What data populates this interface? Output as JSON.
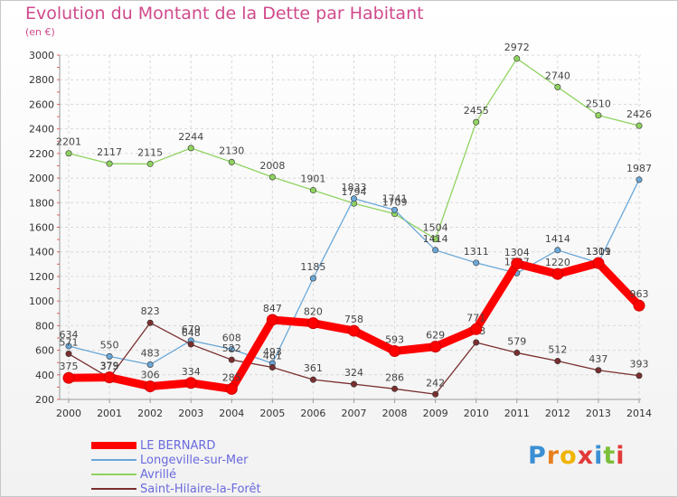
{
  "title": "Evolution du Montant de la Dette par Habitant",
  "unit": "(en €)",
  "logo": [
    "P",
    "r",
    "o",
    "x",
    "i",
    "t",
    "i"
  ],
  "logo_colors": [
    "#3b8fd4",
    "#e87f1f",
    "#f0b400",
    "#e23a3a",
    "#3b8fd4",
    "#7cbf3a",
    "#e23a3a"
  ],
  "chart_data": {
    "type": "line",
    "title": "Evolution du Montant de la Dette par Habitant",
    "ylabel": "(en €)",
    "xlabel": "",
    "ylim": [
      200,
      3000
    ],
    "yticks": [
      200,
      400,
      600,
      800,
      1000,
      1200,
      1400,
      1600,
      1800,
      2000,
      2200,
      2400,
      2600,
      2800,
      3000
    ],
    "x": [
      "2000",
      "2001",
      "2002",
      "2003",
      "2004",
      "2005",
      "2006",
      "2007",
      "2008",
      "2009",
      "2010",
      "2011",
      "2012",
      "2013",
      "2014"
    ],
    "grid": true,
    "series": [
      {
        "name": "Avrillé",
        "color": "#8fd35f",
        "values": [
          2201,
          2117,
          2115,
          2244,
          2130,
          2008,
          1901,
          1794,
          1709,
          1504,
          2455,
          2972,
          2740,
          2510,
          2426
        ],
        "labels": [
          "2201",
          "2117",
          "2115",
          "2244",
          "2130",
          "2008",
          "1901",
          "1794",
          "1709",
          "1504",
          "2455",
          "2972",
          "2740",
          "2510",
          "2426"
        ]
      },
      {
        "name": "Longeville-sur-Mer",
        "color": "#6aa8d8",
        "values": [
          634,
          550,
          483,
          679,
          608,
          493,
          1185,
          1833,
          1741,
          1414,
          1311,
          1227,
          1414,
          1311,
          1987
        ],
        "labels": [
          "634",
          "550",
          "483",
          "679",
          "608",
          "493",
          "1185",
          "1833",
          "1741",
          "1414",
          "1311",
          "1227",
          "1414",
          "1311",
          "1987"
        ]
      },
      {
        "name": "Saint-Hilaire-la-Forêt",
        "color": "#7a2f2f",
        "values": [
          571,
          375,
          823,
          648,
          522,
          461,
          361,
          324,
          286,
          242,
          663,
          579,
          512,
          437,
          393
        ],
        "labels": [
          "571",
          "375",
          "823",
          "648",
          "522",
          "461",
          "361",
          "324",
          "286",
          "242",
          "663",
          "579",
          "512",
          "437",
          "393"
        ]
      },
      {
        "name": "LE BERNARD",
        "color": "#ff0000",
        "values": [
          375,
          379,
          306,
          334,
          285,
          847,
          820,
          758,
          593,
          629,
          771,
          1304,
          1220,
          1309,
          963
        ],
        "labels": [
          "375",
          "379",
          "306",
          "334",
          "285",
          "847",
          "820",
          "758",
          "593",
          "629",
          "771",
          "1304",
          "1220",
          "1309",
          "963"
        ]
      }
    ]
  }
}
